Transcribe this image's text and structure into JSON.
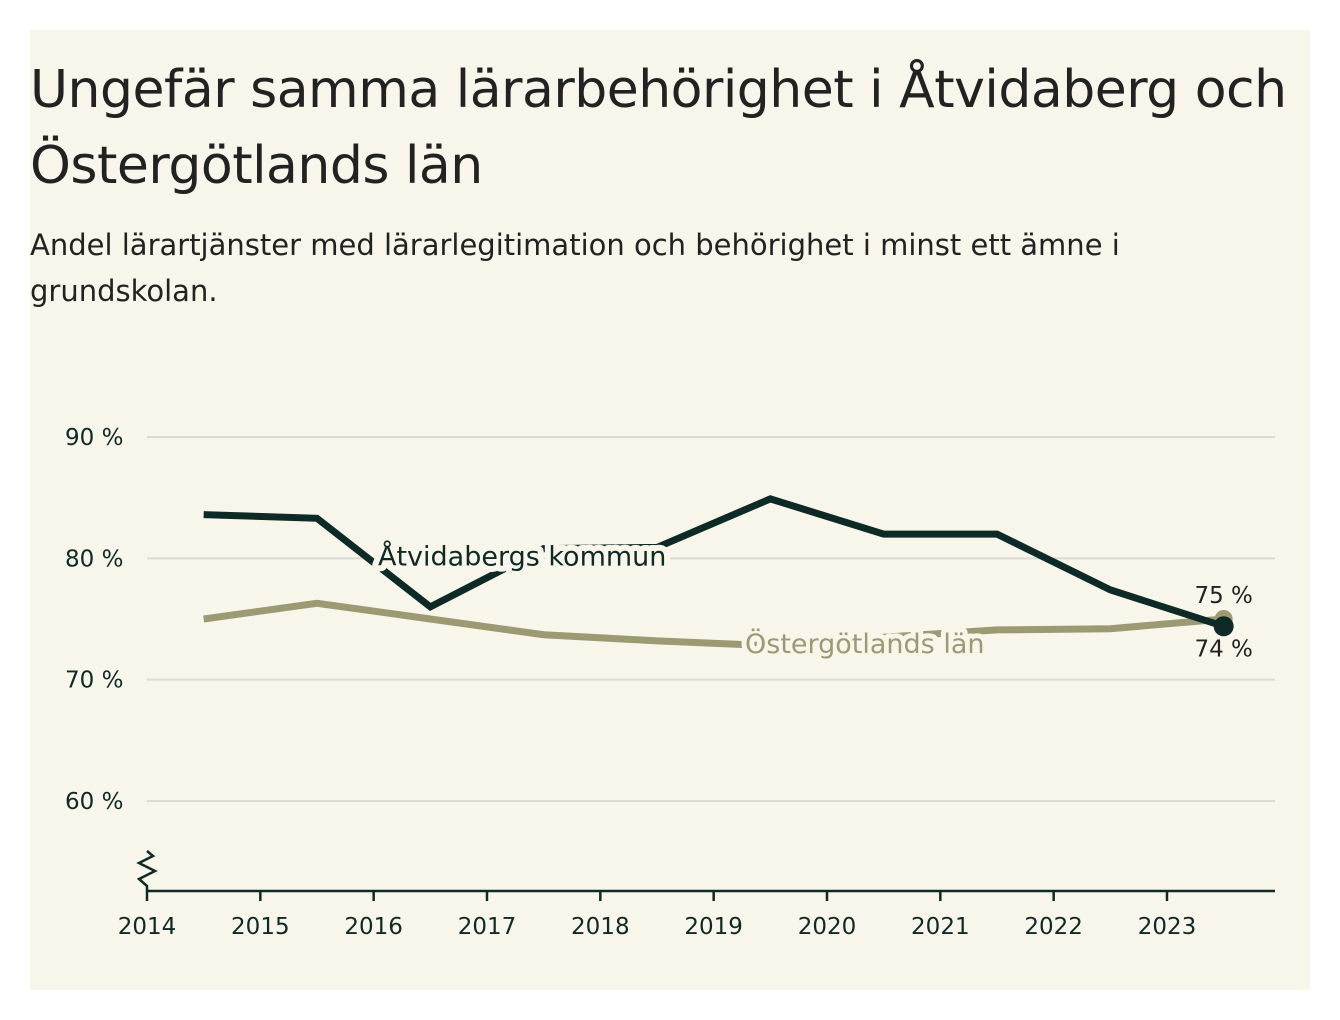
{
  "title": "Ungefär samma lärarbehörighet i Åtvidaberg och Östergötlands län",
  "subtitle": "Andel lärartjänster med lärarlegitimation och behörighet i minst ett ämne i grundskolan.",
  "colors": {
    "background": "#f8f5eb",
    "atvidaberg": "#0e2a27",
    "ostergotland": "#9c9a72",
    "grid": "#dcdad6",
    "axis": "#0e2a27"
  },
  "chart_data": {
    "type": "line",
    "title": "Ungefär samma lärarbehörighet i Åtvidaberg och Östergötlands län",
    "subtitle": "Andel lärartjänster med lärarlegitimation och behörighet i minst ett ämne i grundskolan.",
    "xlabel": "",
    "ylabel": "",
    "x": [
      2014.5,
      2015.5,
      2016.5,
      2017.5,
      2018.5,
      2019.5,
      2020.5,
      2021.5,
      2022.5,
      2023.5
    ],
    "xticks": [
      2014,
      2015,
      2016,
      2017,
      2018,
      2019,
      2020,
      2021,
      2022,
      2023
    ],
    "xtick_labels": [
      "2014",
      "2015",
      "2016",
      "2017",
      "2018",
      "2019",
      "2020",
      "2021",
      "2022",
      "2023"
    ],
    "xlim": [
      2014,
      2024
    ],
    "yticks": [
      60,
      70,
      80,
      90
    ],
    "ytick_labels": [
      "60 %",
      "70 %",
      "80 %",
      "90 %"
    ],
    "ylim": [
      52.5,
      90
    ],
    "y_axis_break": true,
    "grid": true,
    "series": [
      {
        "name": "Åtvidabergs kommun",
        "values": [
          83.6,
          83.3,
          76.0,
          80.8,
          80.9,
          84.9,
          82.0,
          82.0,
          77.4,
          74.4
        ],
        "end_label": "74 %"
      },
      {
        "name": "Östergötlands län",
        "values": [
          75.0,
          76.3,
          75.0,
          73.7,
          73.2,
          72.8,
          73.5,
          74.1,
          74.2,
          75.0
        ],
        "end_label": "75 %"
      }
    ]
  }
}
